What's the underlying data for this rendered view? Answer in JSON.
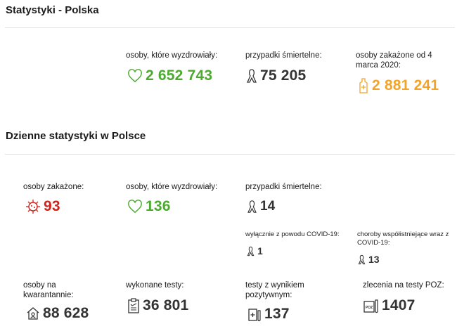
{
  "section1": {
    "title": "Statystyki - Polska",
    "recovered": {
      "label": "osoby, które wyzdrowiały:",
      "value": "2 652 743",
      "icon": "heart-icon"
    },
    "deaths": {
      "label": "przypadki śmiertelne:",
      "value": "75 205",
      "icon": "ribbon-icon"
    },
    "infected": {
      "label": "osoby zakażone od 4 marca 2020:",
      "value": "2 881 241",
      "icon": "sanitizer-icon"
    }
  },
  "section2": {
    "title": "Dzienne statystyki w Polsce",
    "infected": {
      "label": "osoby zakażone:",
      "value": "93",
      "icon": "virus-icon"
    },
    "recovered": {
      "label": "osoby, które wyzdrowiały:",
      "value": "136",
      "icon": "heart-icon"
    },
    "deaths": {
      "label": "przypadki śmiertelne:",
      "value": "14",
      "icon": "ribbon-icon"
    },
    "covid_only": {
      "label": "wyłącznie z powodu COVID-19:",
      "value": "1"
    },
    "comorbid": {
      "label": "choroby współistniejące wraz z COVID-19:",
      "value": "13"
    },
    "quarantine": {
      "label": "osoby na kwarantannie:",
      "value": "88 628",
      "icon": "house-icon"
    },
    "tests": {
      "label": "wykonane testy:",
      "value": "36 801",
      "icon": "clipboard-icon"
    },
    "positive_tests": {
      "label": "testy z wynikiem pozytywnym:",
      "value": "137",
      "icon": "test-tube-icon"
    },
    "poz_orders": {
      "label": "zlecenia na testy POZ:",
      "value": "1407",
      "icon": "poz-test-icon",
      "icon_text": "POZ"
    }
  },
  "colors": {
    "green": "#4caa2f",
    "orange": "#f3a327",
    "red": "#d0231c",
    "dark": "#333333"
  }
}
